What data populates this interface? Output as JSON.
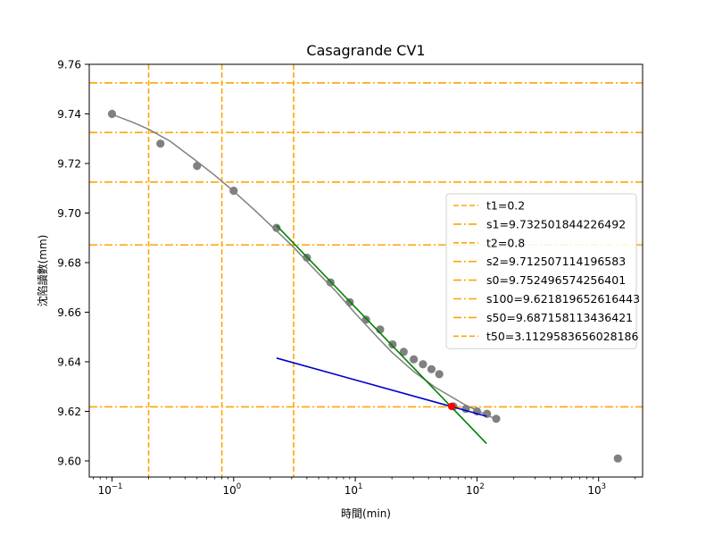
{
  "chart_data": {
    "type": "scatter",
    "title": "Casagrande CV1",
    "xlabel": "時間(min)",
    "ylabel": "沈陷讀數(mm)",
    "xscale": "log",
    "xlim": [
      0.065,
      2300
    ],
    "ylim": [
      9.5935,
      9.76
    ],
    "grid": false,
    "legend_placement": "center-right",
    "x_ticks": [
      {
        "value": 0.1,
        "mantissa": "10",
        "exp": "−1"
      },
      {
        "value": 1,
        "mantissa": "10",
        "exp": "0"
      },
      {
        "value": 10,
        "mantissa": "10",
        "exp": "1"
      },
      {
        "value": 100,
        "mantissa": "10",
        "exp": "2"
      },
      {
        "value": 1000,
        "mantissa": "10",
        "exp": "3"
      }
    ],
    "y_ticks": [
      {
        "value": 9.6,
        "label": "9.60"
      },
      {
        "value": 9.62,
        "label": "9.62"
      },
      {
        "value": 9.64,
        "label": "9.64"
      },
      {
        "value": 9.66,
        "label": "9.66"
      },
      {
        "value": 9.68,
        "label": "9.68"
      },
      {
        "value": 9.7,
        "label": "9.70"
      },
      {
        "value": 9.72,
        "label": "9.72"
      },
      {
        "value": 9.74,
        "label": "9.74"
      },
      {
        "value": 9.76,
        "label": "9.76"
      }
    ],
    "points": {
      "name": "measured",
      "color": "#808080",
      "x": [
        0.1,
        0.25,
        0.5,
        1,
        2.25,
        4,
        6.25,
        9,
        12.25,
        16,
        20.25,
        25,
        30.25,
        36,
        42.25,
        49,
        64,
        81,
        100,
        121,
        144,
        1440
      ],
      "y": [
        9.74,
        9.728,
        9.719,
        9.709,
        9.694,
        9.682,
        9.672,
        9.664,
        9.657,
        9.653,
        9.647,
        9.644,
        9.641,
        9.639,
        9.637,
        9.635,
        9.622,
        9.621,
        9.62,
        9.619,
        9.617,
        9.601
      ]
    },
    "fit_curve": {
      "name": "polynomial fit",
      "color": "#808080",
      "x": [
        0.1,
        0.15,
        0.2,
        0.3,
        0.5,
        0.7,
        1,
        1.5,
        2,
        3,
        5,
        7,
        10,
        15,
        20,
        30,
        45,
        60,
        80,
        100,
        120,
        144
      ],
      "y": [
        9.7398,
        9.7365,
        9.7338,
        9.729,
        9.7208,
        9.7152,
        9.7088,
        9.701,
        9.6952,
        9.687,
        9.6755,
        9.6682,
        9.6595,
        9.6502,
        9.6438,
        9.6362,
        9.6298,
        9.6262,
        9.6226,
        9.6204,
        9.6185,
        9.6168
      ]
    },
    "tangent_lines": [
      {
        "name": "inflection tangent",
        "color": "#008000",
        "x": [
          2.25,
          120
        ],
        "y": [
          9.695,
          9.607
        ]
      },
      {
        "name": "secondary tangent",
        "color": "#0000cc",
        "x": [
          2.25,
          120
        ],
        "y": [
          9.6415,
          9.618
        ]
      }
    ],
    "intersection_point": {
      "name": "EOP intersection",
      "color": "#ff0000",
      "x": 62,
      "y": 9.622
    },
    "reference_lines": [
      {
        "legend": "t1=0.2",
        "orientation": "vertical",
        "value": 0.2,
        "style": "dashed"
      },
      {
        "legend": "s1=9.732501844226492",
        "orientation": "horizontal",
        "value": 9.732501844226492,
        "style": "dashdot"
      },
      {
        "legend": "t2=0.8",
        "orientation": "vertical",
        "value": 0.8,
        "style": "dashed"
      },
      {
        "legend": "s2=9.712507114196583",
        "orientation": "horizontal",
        "value": 9.712507114196583,
        "style": "dashdot"
      },
      {
        "legend": "s0=9.752496574256401",
        "orientation": "horizontal",
        "value": 9.752496574256401,
        "style": "dashdot"
      },
      {
        "legend": "s100=9.621819652616443",
        "orientation": "horizontal",
        "value": 9.621819652616443,
        "style": "dashdot"
      },
      {
        "legend": "s50=9.687158113436421",
        "orientation": "horizontal",
        "value": 9.687158113436421,
        "style": "dashdot"
      },
      {
        "legend": "t50=3.1129583656028186",
        "orientation": "vertical",
        "value": 3.1129583656028186,
        "style": "dashed"
      }
    ],
    "reference_color": "#ffa500"
  }
}
